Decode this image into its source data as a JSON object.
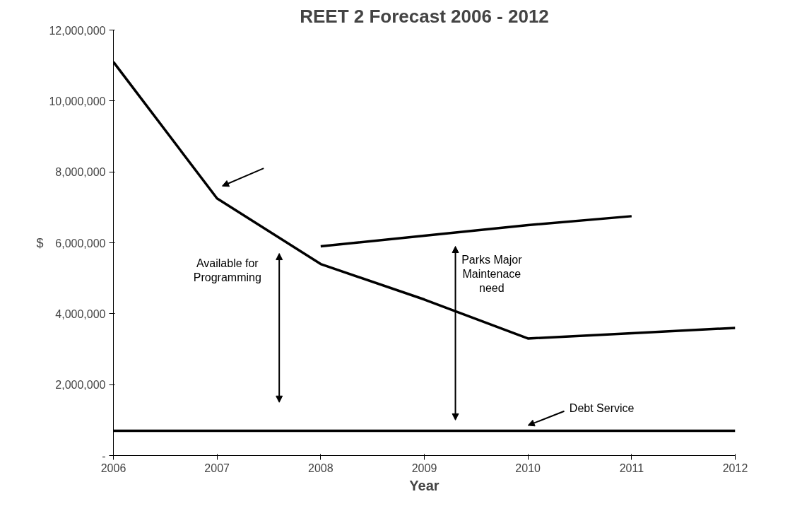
{
  "chart_data": {
    "type": "line",
    "title": "REET 2 Forecast 2006 - 2012",
    "xlabel": "Year",
    "ylabel": "$",
    "x": [
      2006,
      2007,
      2008,
      2009,
      2010,
      2011,
      2012
    ],
    "series": [
      {
        "color": "#000000",
        "values": [
          11100000,
          7250000,
          5400000,
          4400000,
          3300000,
          3450000,
          3600000
        ]
      },
      {
        "color": "#000000",
        "values": [
          null,
          null,
          5900000,
          6200000,
          6500000,
          6750000,
          null
        ]
      },
      {
        "color": "#000000",
        "values": [
          700000,
          700000,
          700000,
          700000,
          700000,
          700000,
          700000
        ]
      }
    ],
    "xlim": [
      2006,
      2012
    ],
    "xticks": [
      2006,
      2007,
      2008,
      2009,
      2010,
      2011,
      2012
    ],
    "ylim": [
      0,
      12000000
    ],
    "yticks": [
      {
        "value": 0,
        "label": "-"
      },
      {
        "value": 2000000,
        "label": "2,000,000"
      },
      {
        "value": 4000000,
        "label": "4,000,000"
      },
      {
        "value": 6000000,
        "label": "6,000,000"
      },
      {
        "value": 8000000,
        "label": "8,000,000"
      },
      {
        "value": 10000000,
        "label": "10,000,000"
      },
      {
        "value": 12000000,
        "label": "12,000,000"
      }
    ],
    "annotations": [
      "Available for Programming",
      "Parks Major Maintenace need",
      {
        "text": "Debt Service",
        "x": 2010,
        "y": 700000
      }
    ],
    "grid": false,
    "line_style": "solid",
    "marker": "none"
  }
}
